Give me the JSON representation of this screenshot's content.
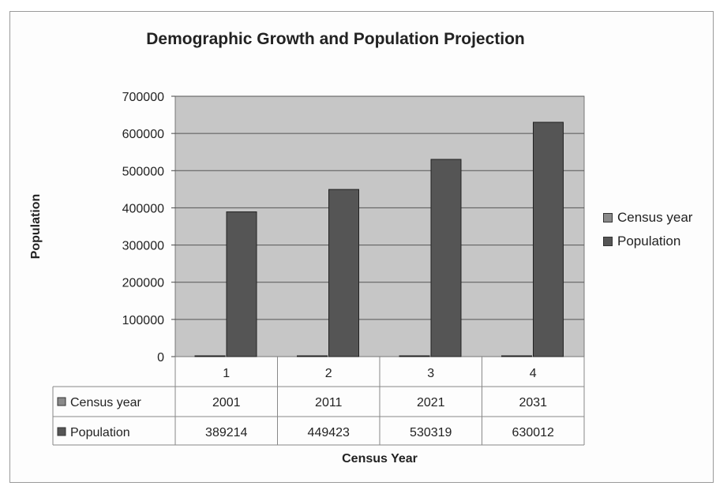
{
  "chart_data": {
    "type": "bar",
    "title": "Demographic Growth and Population Projection",
    "xlabel": "Census Year",
    "ylabel": "Population",
    "categories": [
      "1",
      "2",
      "3",
      "4"
    ],
    "series": [
      {
        "name": "Census year",
        "values": [
          2001,
          2011,
          2021,
          2031
        ],
        "color": "#8a8a8a"
      },
      {
        "name": "Population",
        "values": [
          389214,
          449423,
          530319,
          630012
        ],
        "color": "#555555"
      }
    ],
    "yticks": [
      "700000",
      "600000",
      "500000",
      "400000",
      "300000",
      "200000",
      "100000",
      "0"
    ],
    "ylim": [
      0,
      700000
    ],
    "grid": true,
    "legend": "right",
    "data_table": true
  }
}
